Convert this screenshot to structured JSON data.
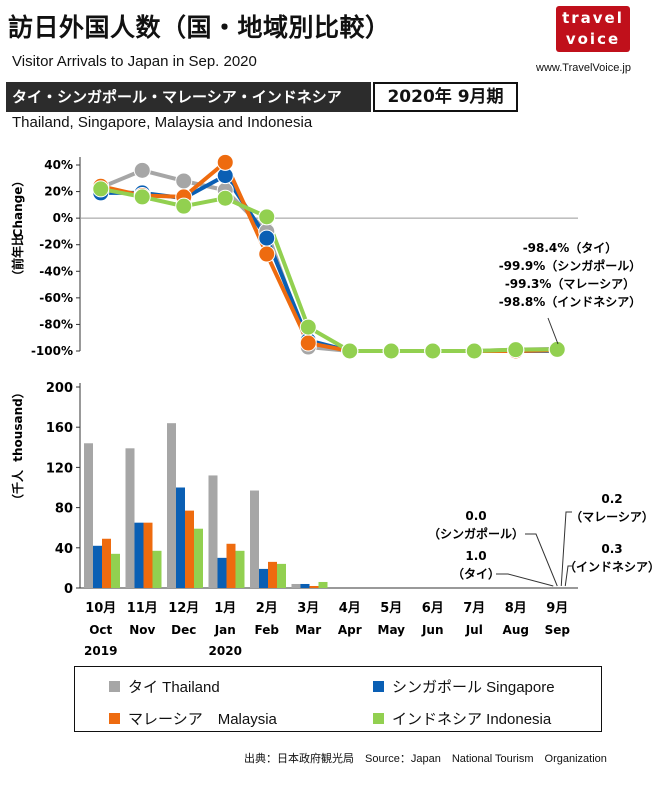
{
  "header": {
    "title": "訪日外国人数（国・地域別比較）",
    "subtitle": "Visitor Arrivals to Japan in Sep. 2020",
    "logo_line1": "travel",
    "logo_line2": "voice",
    "url": "www.TravelVoice.jp",
    "band_label": "タイ・シンガポール・マレーシア・インドネシア",
    "period": "2020年 9月期",
    "countries_en": "Thailand, Singapore, Malaysia and Indonesia"
  },
  "colors": {
    "thailand": "#a6a6a6",
    "singapore": "#0a5fb4",
    "malaysia": "#ee6b0f",
    "indonesia": "#92d050",
    "band": "#2c2c2c",
    "logo": "#c0101b"
  },
  "chart_data": [
    {
      "type": "line",
      "ylabel_ja": "（前年比",
      "ylabel_en": "Change）",
      "ylim": [
        -100,
        40
      ],
      "yticks": [
        40,
        20,
        0,
        -20,
        -40,
        -60,
        -80,
        -100
      ],
      "ytick_labels": [
        "40%",
        "20%",
        "0%",
        "-20%",
        "-40%",
        "-60%",
        "-80%",
        "-100%"
      ],
      "x": [
        "10月",
        "11月",
        "12月",
        "1月",
        "2月",
        "3月",
        "4月",
        "5月",
        "6月",
        "7月",
        "8月",
        "9月"
      ],
      "series": [
        {
          "name": "タイ Thailand",
          "key": "thailand",
          "values": [
            23,
            36,
            28,
            21,
            -10,
            -97,
            -100,
            -100,
            -100,
            -100,
            -99,
            -98.4
          ]
        },
        {
          "name": "シンガポール Singapore",
          "key": "singapore",
          "values": [
            19,
            19,
            15,
            32,
            -15,
            -92,
            -100,
            -100,
            -100,
            -100,
            -100,
            -99.9
          ]
        },
        {
          "name": "マレーシア Malaysia",
          "key": "malaysia",
          "values": [
            24,
            17,
            16,
            42,
            -27,
            -94,
            -100,
            -100,
            -100,
            -100,
            -100,
            -99.3
          ]
        },
        {
          "name": "インドネシア Indonesia",
          "key": "indonesia",
          "values": [
            22,
            16,
            9,
            15,
            1,
            -82,
            -100,
            -100,
            -100,
            -100,
            -99,
            -98.8
          ]
        }
      ],
      "annotation_lines": [
        "-98.4%（タイ）",
        "-99.9%（シンガポール）",
        "-99.3%（マレーシア）",
        "-98.8%（インドネシア）"
      ]
    },
    {
      "type": "bar",
      "ylabel_ja": "（千人",
      "ylabel_en": "thousand）",
      "ylim": [
        0,
        200
      ],
      "yticks": [
        0,
        40,
        80,
        120,
        160,
        200
      ],
      "ytick_labels": [
        "0",
        "40",
        "80",
        "120",
        "160",
        "200"
      ],
      "categories": [
        "10月",
        "11月",
        "12月",
        "1月",
        "2月",
        "3月",
        "4月",
        "5月",
        "6月",
        "7月",
        "8月",
        "9月"
      ],
      "categories_en": [
        "Oct",
        "Nov",
        "Dec",
        "Jan",
        "Feb",
        "Mar",
        "Apr",
        "May",
        "Jun",
        "Jul",
        "Aug",
        "Sep"
      ],
      "year_labels": [
        {
          "index": 0,
          "label": "2019"
        },
        {
          "index": 3,
          "label": "2020"
        }
      ],
      "series": [
        {
          "name": "タイ Thailand",
          "key": "thailand",
          "values": [
            144,
            139,
            164,
            112,
            97,
            4,
            0,
            0,
            0,
            0,
            0,
            1.0
          ]
        },
        {
          "name": "シンガポール Singapore",
          "key": "singapore",
          "values": [
            42,
            65,
            100,
            30,
            19,
            4,
            0,
            0,
            0,
            0,
            0,
            0.0
          ]
        },
        {
          "name": "マレーシア Malaysia",
          "key": "malaysia",
          "values": [
            49,
            65,
            77,
            44,
            26,
            2,
            0,
            0,
            0,
            0,
            0,
            0.2
          ]
        },
        {
          "name": "インドネシア Indonesia",
          "key": "indonesia",
          "values": [
            34,
            37,
            59,
            37,
            24,
            6,
            0,
            0,
            0,
            0,
            0,
            0.3
          ]
        }
      ],
      "callouts": {
        "singapore": {
          "value": "0.0",
          "label": "（シンガポール）"
        },
        "thailand": {
          "value": "1.0",
          "label": "（タイ）"
        },
        "malaysia": {
          "value": "0.2",
          "label": "（マレーシア）"
        },
        "indonesia": {
          "value": "0.3",
          "label": "（インドネシア）"
        }
      }
    }
  ],
  "legend": [
    {
      "key": "thailand",
      "label": "タイ Thailand"
    },
    {
      "key": "singapore",
      "label": "シンガポール Singapore"
    },
    {
      "key": "malaysia",
      "label": "マレーシア　Malaysia"
    },
    {
      "key": "indonesia",
      "label": "インドネシア Indonesia"
    }
  ],
  "footer": {
    "source": "出典：日本政府観光局　Source：Japan　National Tourism　Organization"
  }
}
